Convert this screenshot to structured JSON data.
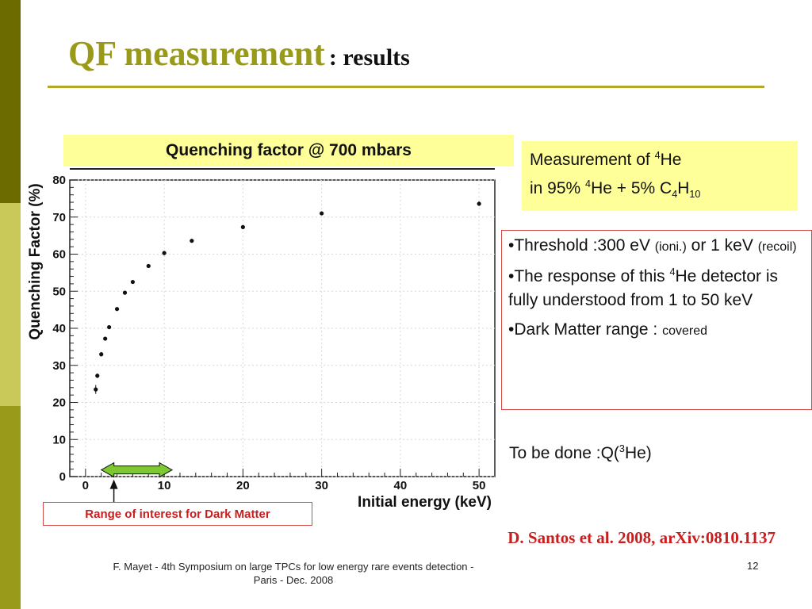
{
  "slide": {
    "title": "QF measurement",
    "title_suffix": ": results",
    "accent_bars": [
      "#6b6b00",
      "#c9c95a",
      "#9a9a1a"
    ]
  },
  "chart_title": "Quenching factor @ 700 mbars",
  "note": {
    "line1_pre": "Measurement of ",
    "line1_sup": "4",
    "line1_post": "He",
    "line2_pre": "in 95% ",
    "line2_sup": "4",
    "line2_mid": "He + 5% C",
    "line2_sub1": "4",
    "line2_h": "H",
    "line2_sub2": "10"
  },
  "bullets": {
    "b1_pre": "•Threshold :300 eV ",
    "b1_small1": "(ioni.)",
    "b1_mid": " or 1 keV ",
    "b1_small2": "(recoil)",
    "b2_pre": "•The response of this ",
    "b2_sup": "4",
    "b2_post": "He detector is fully understood from 1 to 50 keV",
    "b3_pre": "•Dark Matter range : ",
    "b3_small": "covered"
  },
  "todo": {
    "pre": "To be done :Q(",
    "sup": "3",
    "post": "He)"
  },
  "roi_label": "Range of interest for Dark Matter",
  "citation": "D. Santos et al. 2008, arXiv:0810.1137",
  "footer": {
    "line1": "F. Mayet  - 4th Symposium on large TPCs  for low energy rare events detection -",
    "line2": "Paris - Dec. 2008",
    "page": "12"
  },
  "chart_data": {
    "type": "scatter",
    "title": "Quenching factor @ 700 mbars",
    "xlabel": "Initial energy (keV)",
    "ylabel": "Quenching Factor (%)",
    "xlim": [
      -2,
      52
    ],
    "ylim": [
      0,
      80
    ],
    "xticks": [
      0,
      10,
      20,
      30,
      40,
      50
    ],
    "yticks": [
      0,
      10,
      20,
      30,
      40,
      50,
      60,
      70,
      80
    ],
    "grid": true,
    "series": [
      {
        "x": [
          1.3,
          1.5,
          2.0,
          2.5,
          3.0,
          4.0,
          5.0,
          6.0,
          8.0,
          10.0,
          13.5,
          20.0,
          30.0,
          50.0
        ],
        "y": [
          23.5,
          27.2,
          33.0,
          37.2,
          40.3,
          45.2,
          49.6,
          52.5,
          56.8,
          60.3,
          63.6,
          67.3,
          71.0,
          73.6
        ],
        "err": [
          1.2,
          0.6,
          0.6,
          0.5,
          0.5,
          0.5,
          0.5,
          0.5,
          0.5,
          0.6,
          0.5,
          0.5,
          0.5,
          0.6
        ]
      }
    ],
    "annotation_range_keV": [
      2,
      11
    ],
    "annotation_color": "#7ec832"
  }
}
